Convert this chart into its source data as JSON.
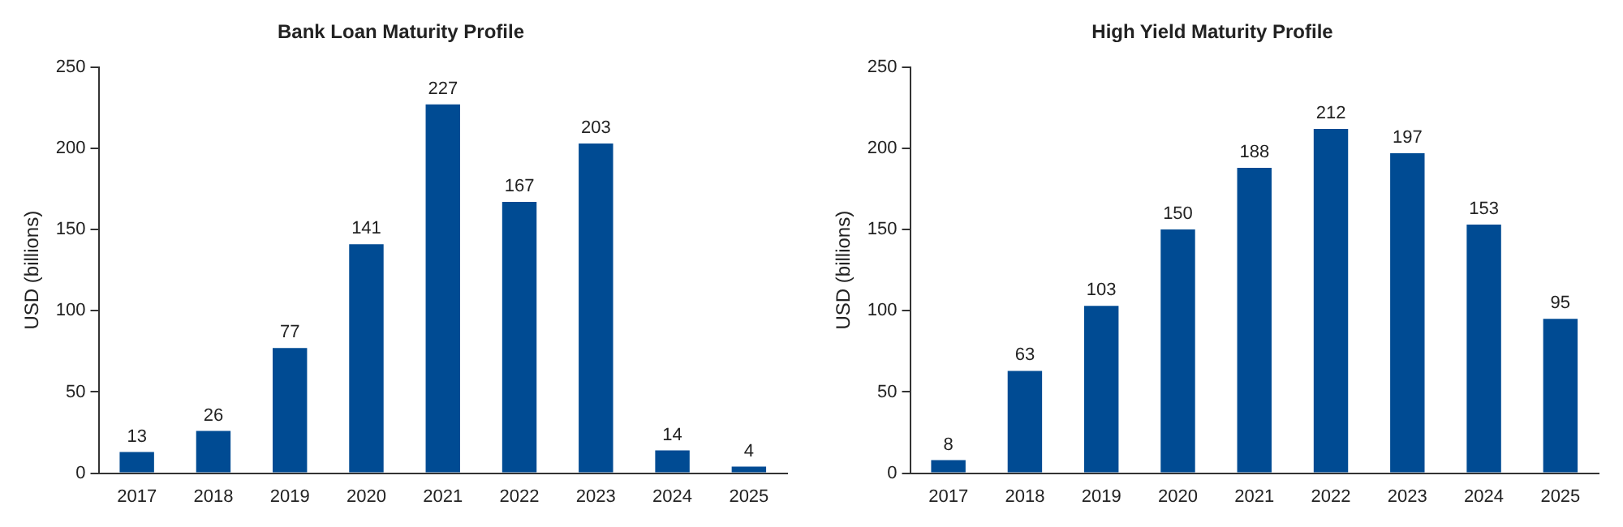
{
  "chart_data": [
    {
      "type": "bar",
      "title": "Bank Loan Maturity Profile",
      "ylabel": "USD (billions)",
      "categories": [
        "2017",
        "2018",
        "2019",
        "2020",
        "2021",
        "2022",
        "2023",
        "2024",
        "2025"
      ],
      "values": [
        13,
        26,
        77,
        141,
        227,
        167,
        203,
        14,
        4
      ],
      "color": "#004b93",
      "ylim": [
        0,
        250
      ],
      "yticks": [
        0,
        50,
        100,
        150,
        200,
        250
      ],
      "grid": false,
      "data_labels": true
    },
    {
      "type": "bar",
      "title": "High Yield Maturity Profile",
      "ylabel": "USD (billions)",
      "categories": [
        "2017",
        "2018",
        "2019",
        "2020",
        "2021",
        "2022",
        "2023",
        "2024",
        "2025"
      ],
      "values": [
        8,
        63,
        103,
        150,
        188,
        212,
        197,
        153,
        95
      ],
      "color": "#004b93",
      "ylim": [
        0,
        250
      ],
      "yticks": [
        0,
        50,
        100,
        150,
        200,
        250
      ],
      "grid": false,
      "data_labels": true
    }
  ]
}
